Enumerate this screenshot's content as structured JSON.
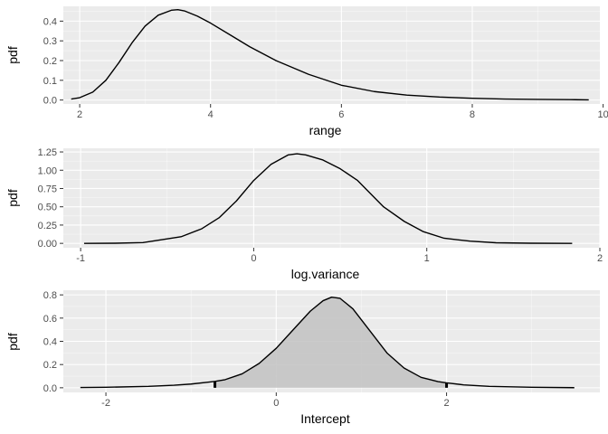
{
  "chart_data": [
    {
      "type": "line",
      "xlabel": "range",
      "ylabel": "pdf",
      "xlim": [
        1.75,
        9.95
      ],
      "ylim": [
        -0.02,
        0.475
      ],
      "x_ticks": [
        2,
        4,
        6,
        8,
        10
      ],
      "x_tick_labels": [
        "2",
        "4",
        "6",
        "8",
        "10"
      ],
      "y_ticks": [
        0.0,
        0.1,
        0.2,
        0.3,
        0.4
      ],
      "y_tick_labels": [
        "0.0",
        "0.1",
        "0.2",
        "0.3",
        "0.4"
      ],
      "grid": true,
      "series": [
        {
          "x": [
            1.87,
            2.0,
            2.2,
            2.4,
            2.6,
            2.8,
            3.0,
            3.2,
            3.4,
            3.5,
            3.6,
            3.8,
            4.0,
            4.3,
            4.6,
            5.0,
            5.5,
            6.0,
            6.5,
            7.0,
            7.5,
            8.0,
            8.5,
            9.0,
            9.5,
            9.78
          ],
          "y": [
            0.005,
            0.012,
            0.04,
            0.1,
            0.19,
            0.29,
            0.375,
            0.43,
            0.455,
            0.458,
            0.452,
            0.425,
            0.39,
            0.33,
            0.27,
            0.2,
            0.13,
            0.075,
            0.043,
            0.025,
            0.015,
            0.009,
            0.005,
            0.003,
            0.002,
            0.001
          ]
        }
      ]
    },
    {
      "type": "line",
      "xlabel": "log.variance",
      "ylabel": "pdf",
      "xlim": [
        -1.1,
        2.0
      ],
      "ylim": [
        -0.06,
        1.3
      ],
      "x_ticks": [
        -1,
        0,
        1,
        2
      ],
      "x_tick_labels": [
        "-1",
        "0",
        "1",
        "2"
      ],
      "y_ticks": [
        0.0,
        0.25,
        0.5,
        0.75,
        1.0,
        1.25
      ],
      "y_tick_labels": [
        "0.00",
        "0.25",
        "0.50",
        "0.75",
        "1.00",
        "1.25"
      ],
      "grid": true,
      "series": [
        {
          "x": [
            -0.98,
            -0.8,
            -0.64,
            -0.42,
            -0.3,
            -0.2,
            -0.1,
            0.0,
            0.1,
            0.2,
            0.25,
            0.3,
            0.4,
            0.5,
            0.6,
            0.75,
            0.87,
            0.98,
            1.1,
            1.25,
            1.4,
            1.6,
            1.84
          ],
          "y": [
            0.0,
            0.002,
            0.01,
            0.09,
            0.2,
            0.35,
            0.58,
            0.86,
            1.08,
            1.21,
            1.225,
            1.21,
            1.14,
            1.02,
            0.86,
            0.5,
            0.3,
            0.16,
            0.07,
            0.03,
            0.008,
            0.002,
            0.0
          ]
        }
      ]
    },
    {
      "type": "area",
      "xlabel": "Intercept",
      "ylabel": "pdf",
      "xlim": [
        -2.5,
        3.8
      ],
      "ylim": [
        -0.04,
        0.84
      ],
      "x_ticks": [
        -2,
        0,
        2
      ],
      "x_tick_labels": [
        "-2",
        "0",
        "2"
      ],
      "y_ticks": [
        0.0,
        0.2,
        0.4,
        0.6,
        0.8
      ],
      "y_tick_labels": [
        "0.0",
        "0.2",
        "0.4",
        "0.6",
        "0.8"
      ],
      "grid": true,
      "shaded_interval": [
        -0.72,
        2.0
      ],
      "series": [
        {
          "x": [
            -2.3,
            -2.0,
            -1.5,
            -1.2,
            -1.0,
            -0.8,
            -0.72,
            -0.6,
            -0.4,
            -0.2,
            0.0,
            0.2,
            0.4,
            0.55,
            0.65,
            0.75,
            0.9,
            1.1,
            1.3,
            1.5,
            1.7,
            1.9,
            2.0,
            2.2,
            2.5,
            3.0,
            3.5
          ],
          "y": [
            0.002,
            0.004,
            0.012,
            0.022,
            0.032,
            0.048,
            0.055,
            0.07,
            0.12,
            0.21,
            0.34,
            0.5,
            0.66,
            0.75,
            0.78,
            0.77,
            0.68,
            0.49,
            0.3,
            0.17,
            0.09,
            0.053,
            0.042,
            0.025,
            0.012,
            0.004,
            0.001
          ]
        }
      ]
    }
  ]
}
